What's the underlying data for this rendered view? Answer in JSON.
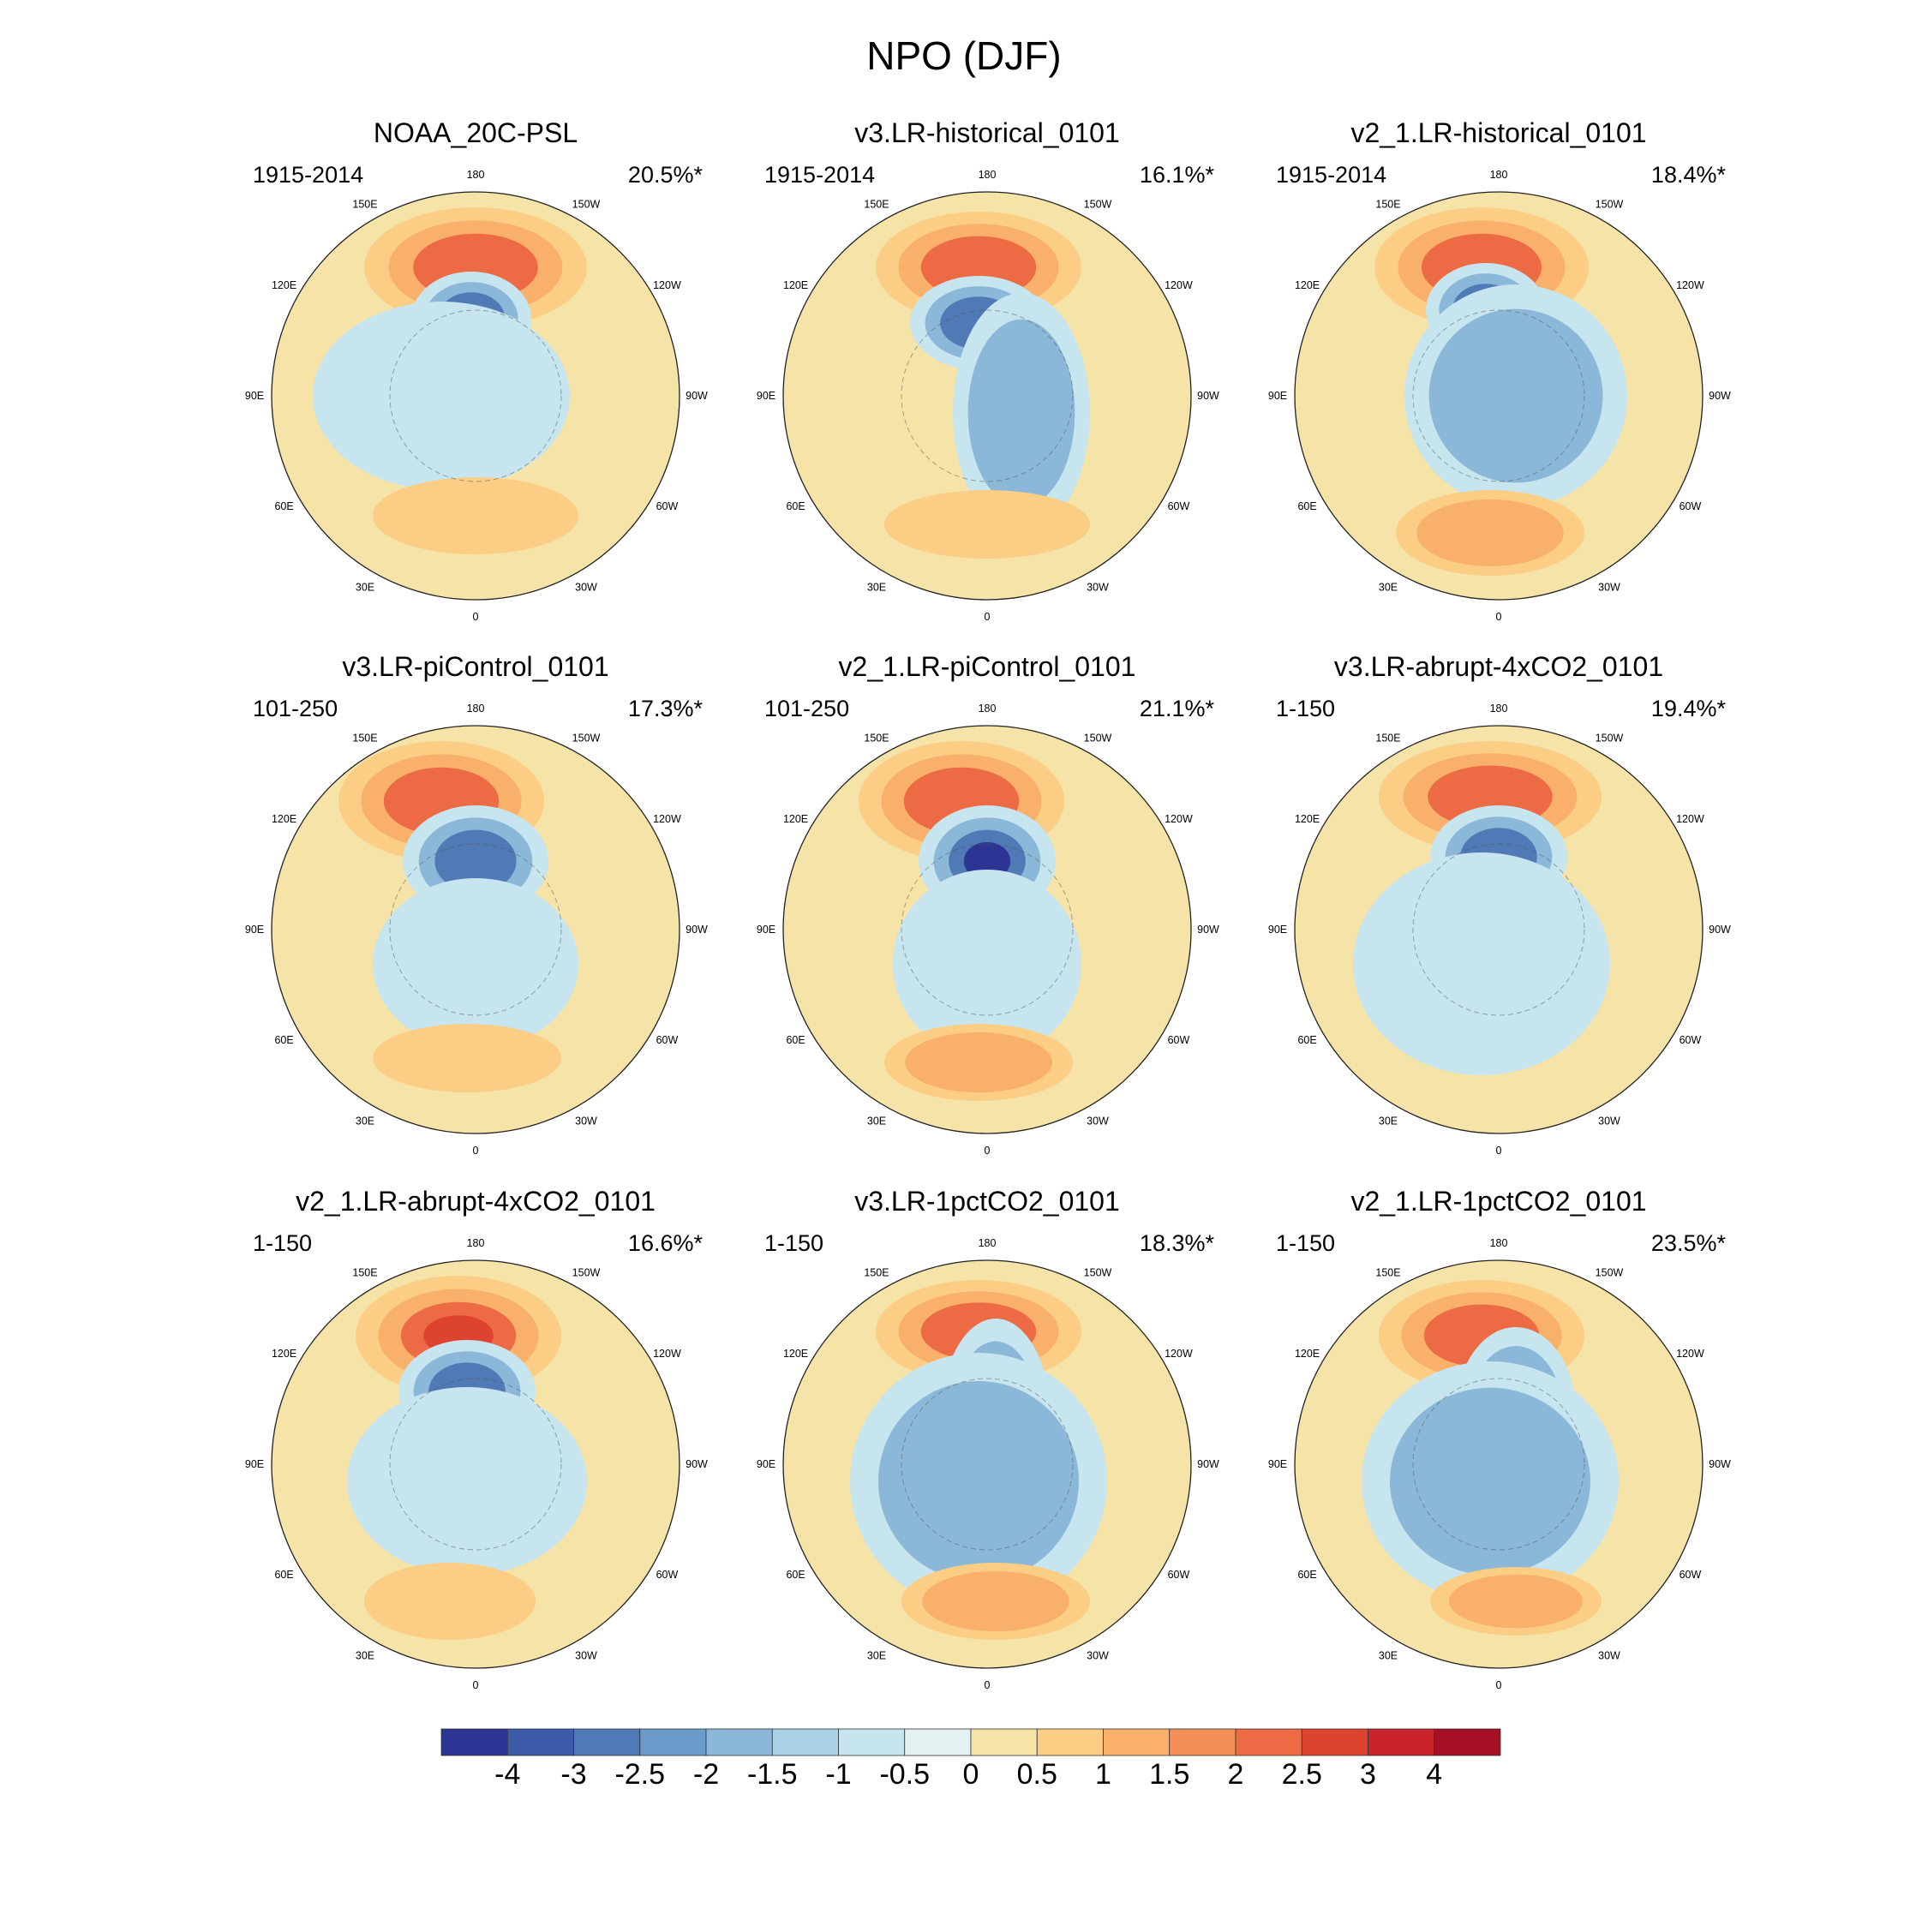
{
  "figure": {
    "title": "NPO (DJF)"
  },
  "longitude_labels": [
    "180",
    "150E",
    "120E",
    "90E",
    "60E",
    "30E",
    "0",
    "30W",
    "60W",
    "90W",
    "120W",
    "150W"
  ],
  "colorbar": {
    "ticks": [
      "-4",
      "-3",
      "-2.5",
      "-2",
      "-1.5",
      "-1",
      "-0.5",
      "0",
      "0.5",
      "1",
      "1.5",
      "2",
      "2.5",
      "3",
      "4"
    ],
    "colors": [
      "#2c3593",
      "#3b5ba8",
      "#4f7ab5",
      "#6a9bcb",
      "#8bb8d8",
      "#a9d3e5",
      "#c7e5ef",
      "#e3f2f1",
      "#f6e3a8",
      "#fbcd85",
      "#f8b06b",
      "#f48f57",
      "#ec6a44",
      "#de4330",
      "#c9242b",
      "#a50f26"
    ]
  },
  "chart_data": [
    {
      "type": "polar-contour",
      "title": "NOAA_20C-PSL",
      "period": "1915-2014",
      "variance": "20.5%*"
    },
    {
      "type": "polar-contour",
      "title": "v3.LR-historical_0101",
      "period": "1915-2014",
      "variance": "16.1%*"
    },
    {
      "type": "polar-contour",
      "title": "v2_1.LR-historical_0101",
      "period": "1915-2014",
      "variance": "18.4%*"
    },
    {
      "type": "polar-contour",
      "title": "v3.LR-piControl_0101",
      "period": "101-250",
      "variance": "17.3%*"
    },
    {
      "type": "polar-contour",
      "title": "v2_1.LR-piControl_0101",
      "period": "101-250",
      "variance": "21.1%*"
    },
    {
      "type": "polar-contour",
      "title": "v3.LR-abrupt-4xCO2_0101",
      "period": "1-150",
      "variance": "19.4%*"
    },
    {
      "type": "polar-contour",
      "title": "v2_1.LR-abrupt-4xCO2_0101",
      "period": "1-150",
      "variance": "16.6%*"
    },
    {
      "type": "polar-contour",
      "title": "v3.LR-1pctCO2_0101",
      "period": "1-150",
      "variance": "18.3%*"
    },
    {
      "type": "polar-contour",
      "title": "v2_1.LR-1pctCO2_0101",
      "period": "1-150",
      "variance": "23.5%*"
    }
  ]
}
